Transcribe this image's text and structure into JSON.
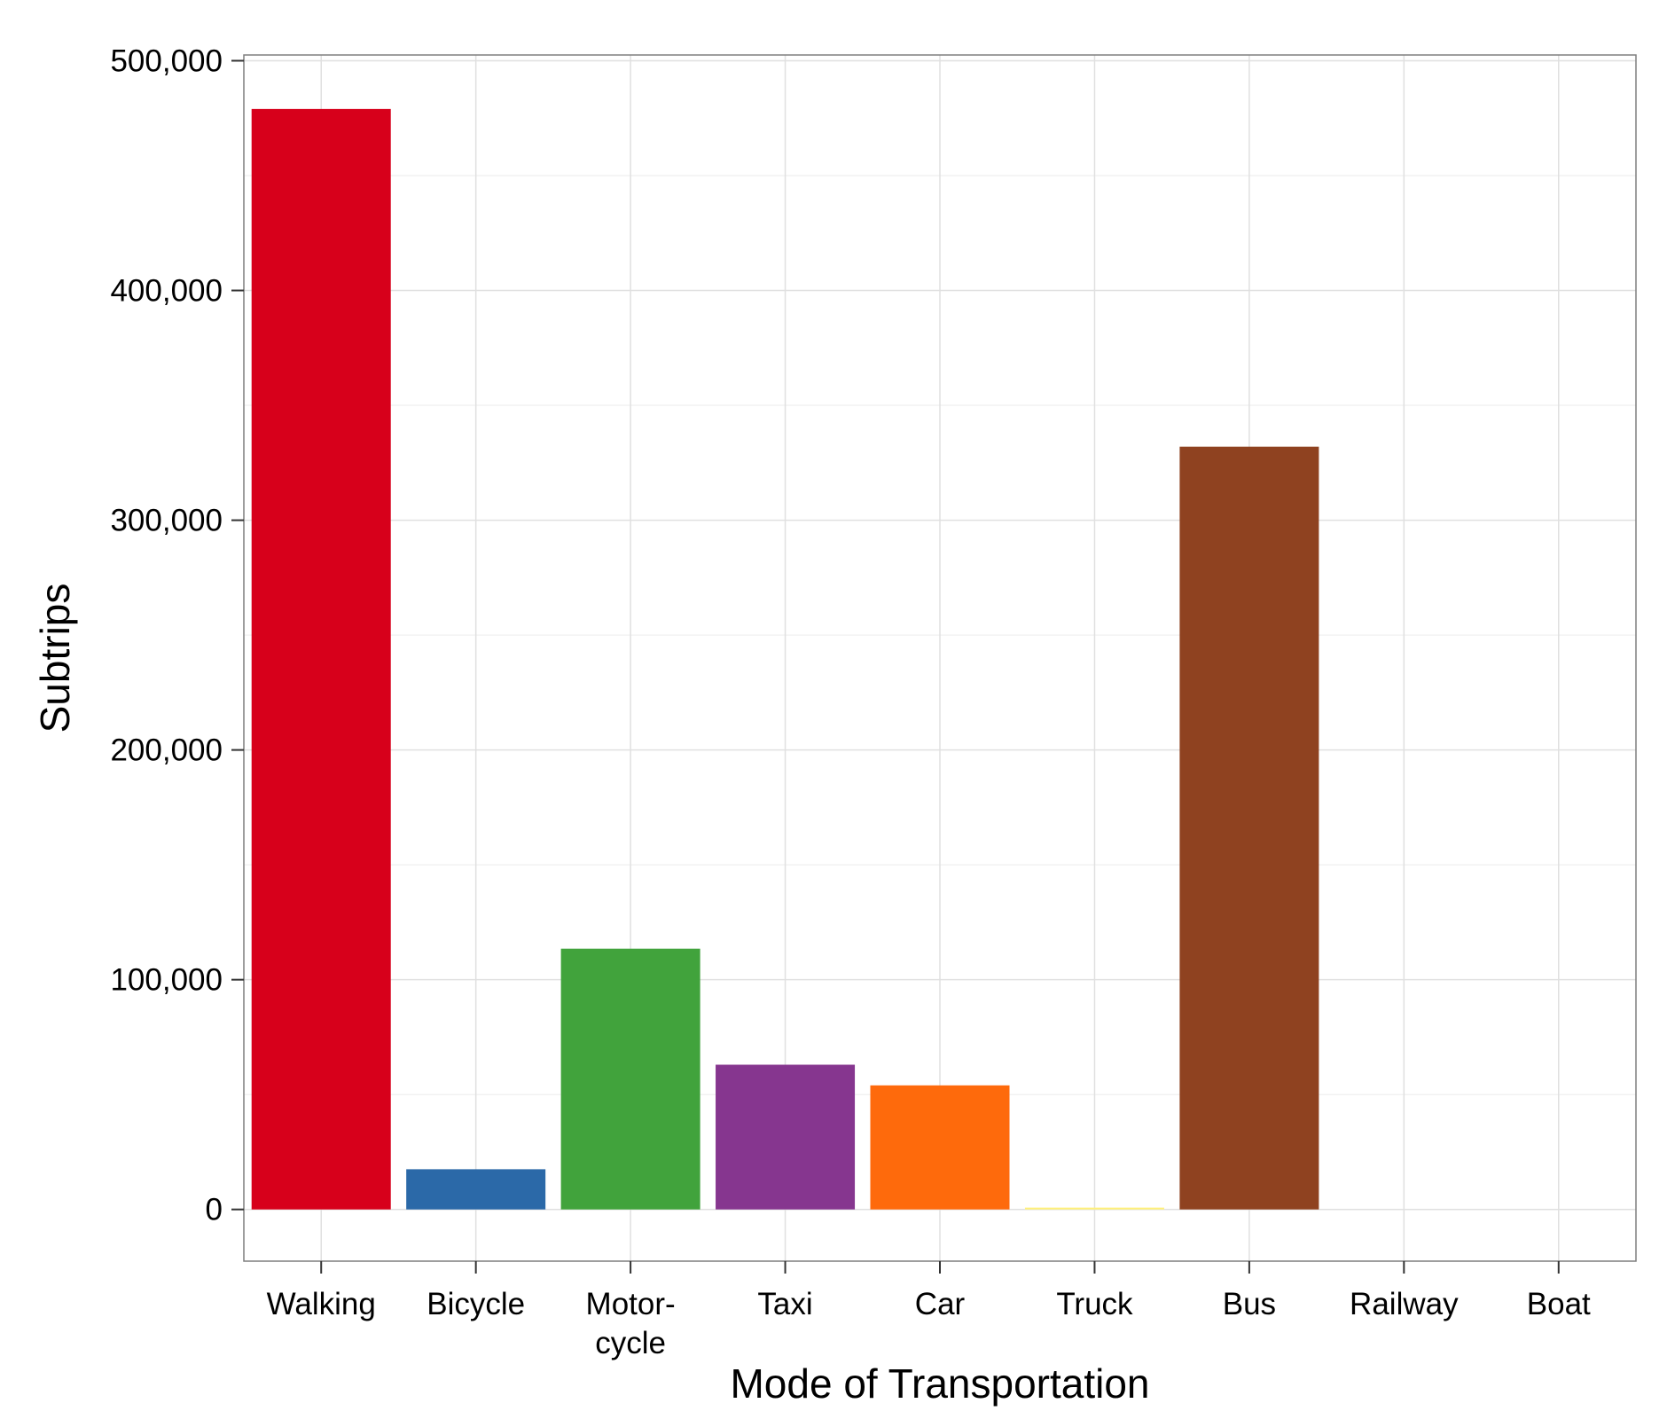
{
  "chart_data": {
    "type": "bar",
    "categories": [
      "Walking",
      "Bicycle",
      "Motor-\ncycle",
      "Taxi",
      "Car",
      "Truck",
      "Bus",
      "Railway",
      "Boat"
    ],
    "values": [
      479000,
      17500,
      113500,
      63000,
      54000,
      800,
      332000,
      0,
      0
    ],
    "colors": [
      "#d7001b",
      "#2b69a8",
      "#41a33c",
      "#86368f",
      "#fe6a0c",
      "#fff07a",
      "#8f4220",
      "#999999",
      "#f77fbe"
    ],
    "xlabel": "Mode of Transportation",
    "ylabel": "Subtrips",
    "ylim": [
      -22500,
      502500
    ],
    "yticks": [
      0,
      100000,
      200000,
      300000,
      400000,
      500000
    ],
    "ytick_labels": [
      "0",
      "100,000",
      "200,000",
      "300,000",
      "400,000",
      "500,000"
    ],
    "grid": true,
    "legend": "none"
  }
}
